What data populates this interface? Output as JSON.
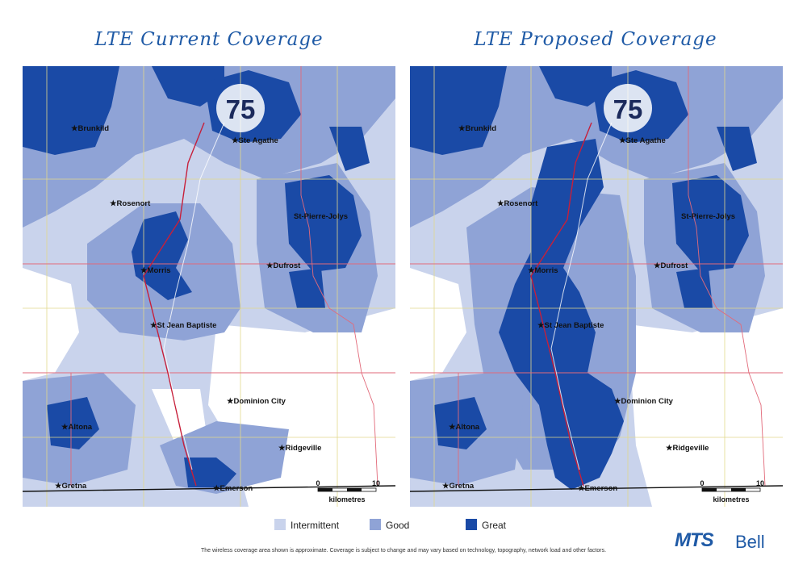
{
  "maps": [
    {
      "title": "LTE Current Coverage",
      "highway": "75"
    },
    {
      "title": "LTE Proposed Coverage",
      "highway": "75"
    }
  ],
  "towns": {
    "brunkild": "Brunkild",
    "ste_agathe": "Ste Agathe",
    "rosenort": "Rosenort",
    "st_pierre_jolys": "St-Pierre-Jolys",
    "morris": "Morris",
    "dufrost": "Dufrost",
    "st_jean_baptiste": "St Jean Baptiste",
    "dominion_city": "Dominion City",
    "altona": "Altona",
    "ridgeville": "Ridgeville",
    "gretna": "Gretna",
    "emerson": "Emerson"
  },
  "scale": {
    "start": "0",
    "end": "10",
    "unit": "kilometres"
  },
  "legend": [
    {
      "label": "Intermittent",
      "color": "#c9d3ec"
    },
    {
      "label": "Good",
      "color": "#8fa3d6"
    },
    {
      "label": "Great",
      "color": "#1a4aa6"
    }
  ],
  "disclaimer": "The wireless coverage area shown is approximate. Coverage is subject to change and may vary based on technology, topography, network load and other factors.",
  "logos": {
    "mts": "MTS",
    "bell": "Bell"
  }
}
